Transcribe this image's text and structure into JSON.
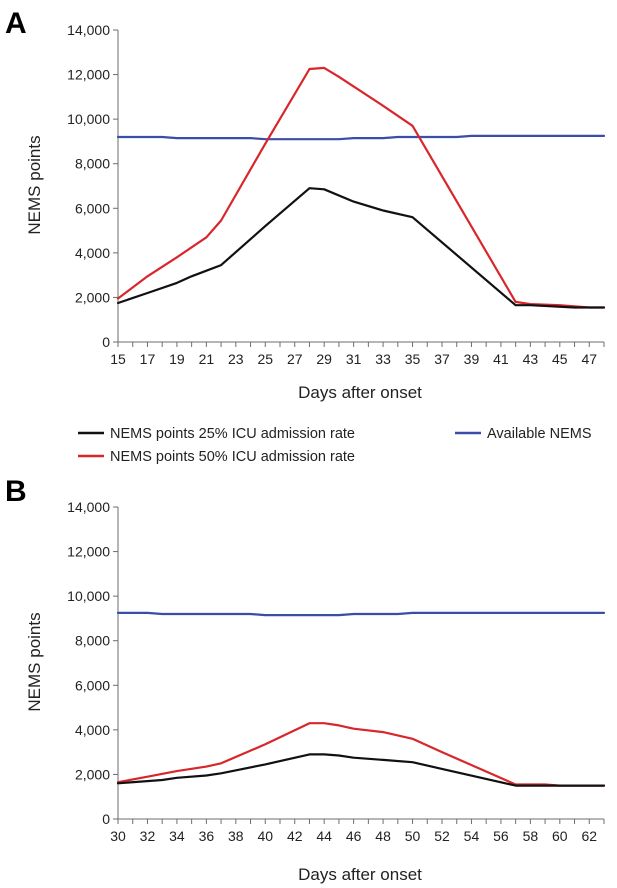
{
  "chart_data": [
    {
      "type": "line",
      "panel_label": "A",
      "xlabel": "Days after onset",
      "ylabel": "NEMS points",
      "xlim": [
        15,
        48
      ],
      "ylim": [
        0,
        14000
      ],
      "yticks": [
        0,
        2000,
        4000,
        6000,
        8000,
        10000,
        12000,
        14000
      ],
      "ytick_labels": [
        "0",
        "2,000",
        "4,000",
        "6,000",
        "8,000",
        "10,000",
        "12,000",
        "14,000"
      ],
      "xticks": [
        15,
        17,
        19,
        21,
        23,
        25,
        27,
        29,
        31,
        33,
        35,
        37,
        39,
        41,
        43,
        45,
        47
      ],
      "xtick_labels": [
        "15",
        "17",
        "19",
        "21",
        "23",
        "25",
        "27",
        "29",
        "31",
        "33",
        "35",
        "37",
        "39",
        "41",
        "43",
        "45",
        "47"
      ],
      "series": [
        {
          "name": "Available NEMS",
          "color": "#3a4da8",
          "points": [
            [
              15,
              9200
            ],
            [
              18,
              9200
            ],
            [
              19,
              9150
            ],
            [
              24,
              9150
            ],
            [
              25,
              9100
            ],
            [
              30,
              9100
            ],
            [
              31,
              9150
            ],
            [
              33,
              9150
            ],
            [
              34,
              9200
            ],
            [
              38,
              9200
            ],
            [
              39,
              9250
            ],
            [
              48,
              9250
            ]
          ]
        },
        {
          "name": "NEMS points 50% ICU admission rate",
          "color": "#d8262b",
          "points": [
            [
              15,
              1950
            ],
            [
              17,
              2950
            ],
            [
              19,
              3800
            ],
            [
              21,
              4700
            ],
            [
              22,
              5450
            ],
            [
              25,
              8900
            ],
            [
              28,
              12250
            ],
            [
              29,
              12300
            ],
            [
              30,
              11900
            ],
            [
              33,
              10600
            ],
            [
              35,
              9700
            ],
            [
              42,
              1800
            ],
            [
              43,
              1700
            ],
            [
              45,
              1650
            ],
            [
              47,
              1550
            ],
            [
              48,
              1550
            ]
          ]
        },
        {
          "name": "NEMS points 25% ICU admission rate",
          "color": "#111111",
          "points": [
            [
              15,
              1750
            ],
            [
              17,
              2200
            ],
            [
              19,
              2650
            ],
            [
              20,
              2950
            ],
            [
              21,
              3200
            ],
            [
              22,
              3450
            ],
            [
              25,
              5200
            ],
            [
              28,
              6900
            ],
            [
              29,
              6850
            ],
            [
              31,
              6300
            ],
            [
              33,
              5900
            ],
            [
              35,
              5600
            ],
            [
              42,
              1650
            ],
            [
              43,
              1650
            ],
            [
              46,
              1550
            ],
            [
              48,
              1550
            ]
          ]
        }
      ]
    },
    {
      "type": "line",
      "panel_label": "B",
      "xlabel": "Days after onset",
      "ylabel": "NEMS points",
      "xlim": [
        30,
        63
      ],
      "ylim": [
        0,
        14000
      ],
      "yticks": [
        0,
        2000,
        4000,
        6000,
        8000,
        10000,
        12000,
        14000
      ],
      "ytick_labels": [
        "0",
        "2,000",
        "4,000",
        "6,000",
        "8,000",
        "10,000",
        "12,000",
        "14,000"
      ],
      "xticks": [
        30,
        32,
        34,
        36,
        38,
        40,
        42,
        44,
        46,
        48,
        50,
        52,
        54,
        56,
        58,
        60,
        62
      ],
      "xtick_labels": [
        "30",
        "32",
        "34",
        "36",
        "38",
        "40",
        "42",
        "44",
        "46",
        "48",
        "50",
        "52",
        "54",
        "56",
        "58",
        "60",
        "62"
      ],
      "series": [
        {
          "name": "Available NEMS",
          "color": "#3a4da8",
          "points": [
            [
              30,
              9250
            ],
            [
              32,
              9250
            ],
            [
              33,
              9200
            ],
            [
              39,
              9200
            ],
            [
              40,
              9150
            ],
            [
              45,
              9150
            ],
            [
              46,
              9200
            ],
            [
              49,
              9200
            ],
            [
              50,
              9250
            ],
            [
              63,
              9250
            ]
          ]
        },
        {
          "name": "NEMS points 50% ICU admission rate",
          "color": "#d8262b",
          "points": [
            [
              30,
              1650
            ],
            [
              32,
              1900
            ],
            [
              34,
              2150
            ],
            [
              36,
              2350
            ],
            [
              37,
              2500
            ],
            [
              40,
              3350
            ],
            [
              43,
              4300
            ],
            [
              44,
              4300
            ],
            [
              45,
              4200
            ],
            [
              46,
              4050
            ],
            [
              48,
              3900
            ],
            [
              50,
              3600
            ],
            [
              52,
              3000
            ],
            [
              57,
              1550
            ],
            [
              59,
              1550
            ],
            [
              60,
              1500
            ],
            [
              63,
              1500
            ]
          ]
        },
        {
          "name": "NEMS points 25% ICU admission rate",
          "color": "#111111",
          "points": [
            [
              30,
              1600
            ],
            [
              33,
              1750
            ],
            [
              34,
              1850
            ],
            [
              36,
              1950
            ],
            [
              37,
              2050
            ],
            [
              40,
              2450
            ],
            [
              43,
              2900
            ],
            [
              44,
              2900
            ],
            [
              45,
              2850
            ],
            [
              46,
              2750
            ],
            [
              48,
              2650
            ],
            [
              50,
              2550
            ],
            [
              52,
              2250
            ],
            [
              57,
              1500
            ],
            [
              63,
              1500
            ]
          ]
        }
      ]
    }
  ],
  "legend": {
    "placement": "between-panels",
    "items": [
      {
        "label": "NEMS points 25% ICU admission rate",
        "color": "#111111"
      },
      {
        "label": "Available NEMS",
        "color": "#3a4da8"
      },
      {
        "label": "NEMS points 50% ICU admission rate",
        "color": "#d8262b"
      }
    ]
  }
}
